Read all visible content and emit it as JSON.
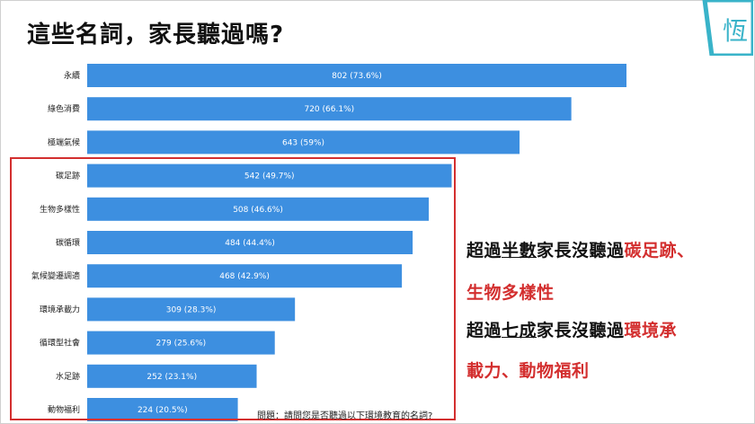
{
  "page": {
    "title": "這些名詞，家長聽過嗎?",
    "question": "問題：請問您是否聽過以下環境教育的名詞?"
  },
  "logo": {
    "icon": "brand-logo-icon",
    "color": "#39b3c9"
  },
  "callouts": {
    "line1": {
      "pre": "超過",
      "underlined": "半數",
      "mid": "家長沒聽過",
      "red": "碳足跡、"
    },
    "line2": {
      "red": "生物多樣性"
    },
    "line3": {
      "pre": "超過",
      "underlined": "七成",
      "mid": "家長沒聽過",
      "red": "環境承"
    },
    "line4": {
      "red": "載力、動物福利"
    }
  },
  "colors": {
    "bar": "#3d8fe0",
    "highlight": "#d32f2f"
  },
  "chart_data": {
    "type": "bar",
    "orientation": "horizontal",
    "categories": [
      "永續",
      "綠色消費",
      "極端氣候",
      "碳足跡",
      "生物多樣性",
      "碳循環",
      "氣候變遷調適",
      "環境承載力",
      "循環型社會",
      "水足跡",
      "動物福利"
    ],
    "values": [
      802,
      720,
      643,
      542,
      508,
      484,
      468,
      309,
      279,
      252,
      224
    ],
    "labels": [
      "802 (73.6%)",
      "720 (66.1%)",
      "643 (59%)",
      "542 (49.7%)",
      "508 (46.6%)",
      "484 (44.4%)",
      "468 (42.9%)",
      "309 (28.3%)",
      "279 (25.6%)",
      "252 (23.1%)",
      "224 (20.5%)"
    ],
    "grid": false,
    "legend": "none"
  }
}
